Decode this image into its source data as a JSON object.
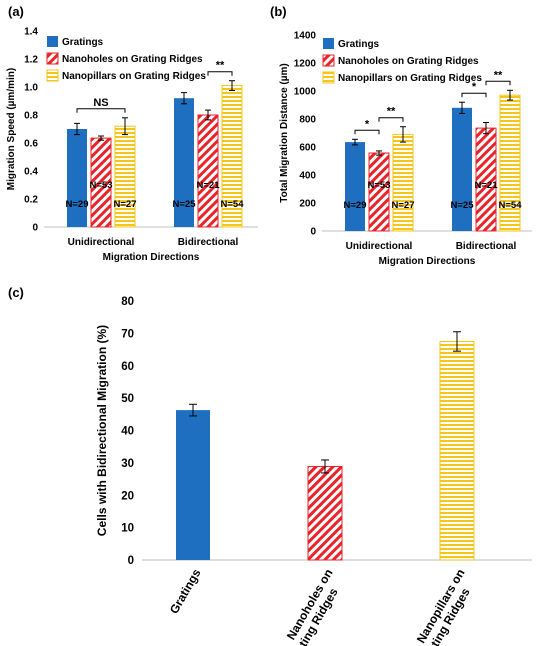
{
  "colors": {
    "gratings": "#1f6fc0",
    "nanoholes": "#e8232a",
    "nanopillars": "#f5c518",
    "axis": "#bfbfbf",
    "text": "#000000"
  },
  "chart_data": [
    {
      "panel_label": "(a)",
      "type": "bar",
      "categories": [
        "Unidirectional",
        "Bidirectional"
      ],
      "xlabel": "Migration Directions",
      "ylabel": "Migration Speed (µm/min)",
      "ylim": [
        0,
        1.4
      ],
      "yticks": [
        "0",
        "0.2",
        "0.4",
        "0.6",
        "0.8",
        "1.0",
        "1.2",
        "1.4"
      ],
      "legend_placement": "top-left",
      "series": [
        {
          "name": "Gratings",
          "values": [
            0.7,
            0.92
          ],
          "errors": [
            0.04,
            0.04
          ],
          "n_labels": [
            "N=29",
            "N=25"
          ]
        },
        {
          "name": "Nanoholes on Grating Ridges",
          "values": [
            0.635,
            0.8
          ],
          "errors": [
            0.015,
            0.035
          ],
          "n_labels": [
            "N=53",
            "N=21"
          ]
        },
        {
          "name": "Nanopillars on Grating Ridges",
          "values": [
            0.72,
            1.01
          ],
          "errors": [
            0.06,
            0.035
          ],
          "n_labels": [
            "N=27",
            "N=54"
          ]
        }
      ],
      "annotations": [
        {
          "text": "NS",
          "group": 0,
          "from": 0,
          "to": 2
        },
        {
          "text": "**",
          "group": 1,
          "from": 1,
          "to": 2
        }
      ]
    },
    {
      "panel_label": "(b)",
      "type": "bar",
      "categories": [
        "Unidirectional",
        "Bidirectional"
      ],
      "xlabel": "Migration Directions",
      "ylabel": "Total Migration Distance (µm)",
      "ylim": [
        0,
        1400
      ],
      "yticks": [
        "0",
        "200",
        "400",
        "600",
        "800",
        "1000",
        "1200",
        "1400"
      ],
      "legend_placement": "top-left",
      "series": [
        {
          "name": "Gratings",
          "values": [
            635,
            880
          ],
          "errors": [
            20,
            40
          ],
          "n_labels": [
            "N=29",
            "N=25"
          ]
        },
        {
          "name": "Nanoholes on Grating Ridges",
          "values": [
            557,
            735
          ],
          "errors": [
            15,
            40
          ],
          "n_labels": [
            "N=53",
            "N=21"
          ]
        },
        {
          "name": "Nanopillars on Grating Ridges",
          "values": [
            690,
            970
          ],
          "errors": [
            55,
            35
          ],
          "n_labels": [
            "N=27",
            "N=54"
          ]
        }
      ],
      "annotations": [
        {
          "text": "*",
          "group": 0,
          "from": 0,
          "to": 1
        },
        {
          "text": "**",
          "group": 0,
          "from": 1,
          "to": 2
        },
        {
          "text": "*",
          "group": 1,
          "from": 0,
          "to": 1
        },
        {
          "text": "**",
          "group": 1,
          "from": 1,
          "to": 2
        }
      ]
    },
    {
      "panel_label": "(c)",
      "type": "bar",
      "categories": [
        "Gratings",
        "Nanoholes on Grating Ridges",
        "Nanopillars on Grating Ridges"
      ],
      "category_lines": [
        [
          "Gratings"
        ],
        [
          "Nanoholes on",
          "Grating Ridges"
        ],
        [
          "Nanopillars on",
          "Grating Ridges"
        ]
      ],
      "xlabel": "",
      "ylabel": "Cells with Bidirectional Migration (%)",
      "ylim": [
        0,
        80
      ],
      "yticks": [
        "0",
        "10",
        "20",
        "30",
        "40",
        "50",
        "60",
        "70",
        "80"
      ],
      "values": [
        46.3,
        28.9,
        67.5
      ],
      "errors": [
        1.8,
        2.0,
        3.0
      ]
    }
  ]
}
